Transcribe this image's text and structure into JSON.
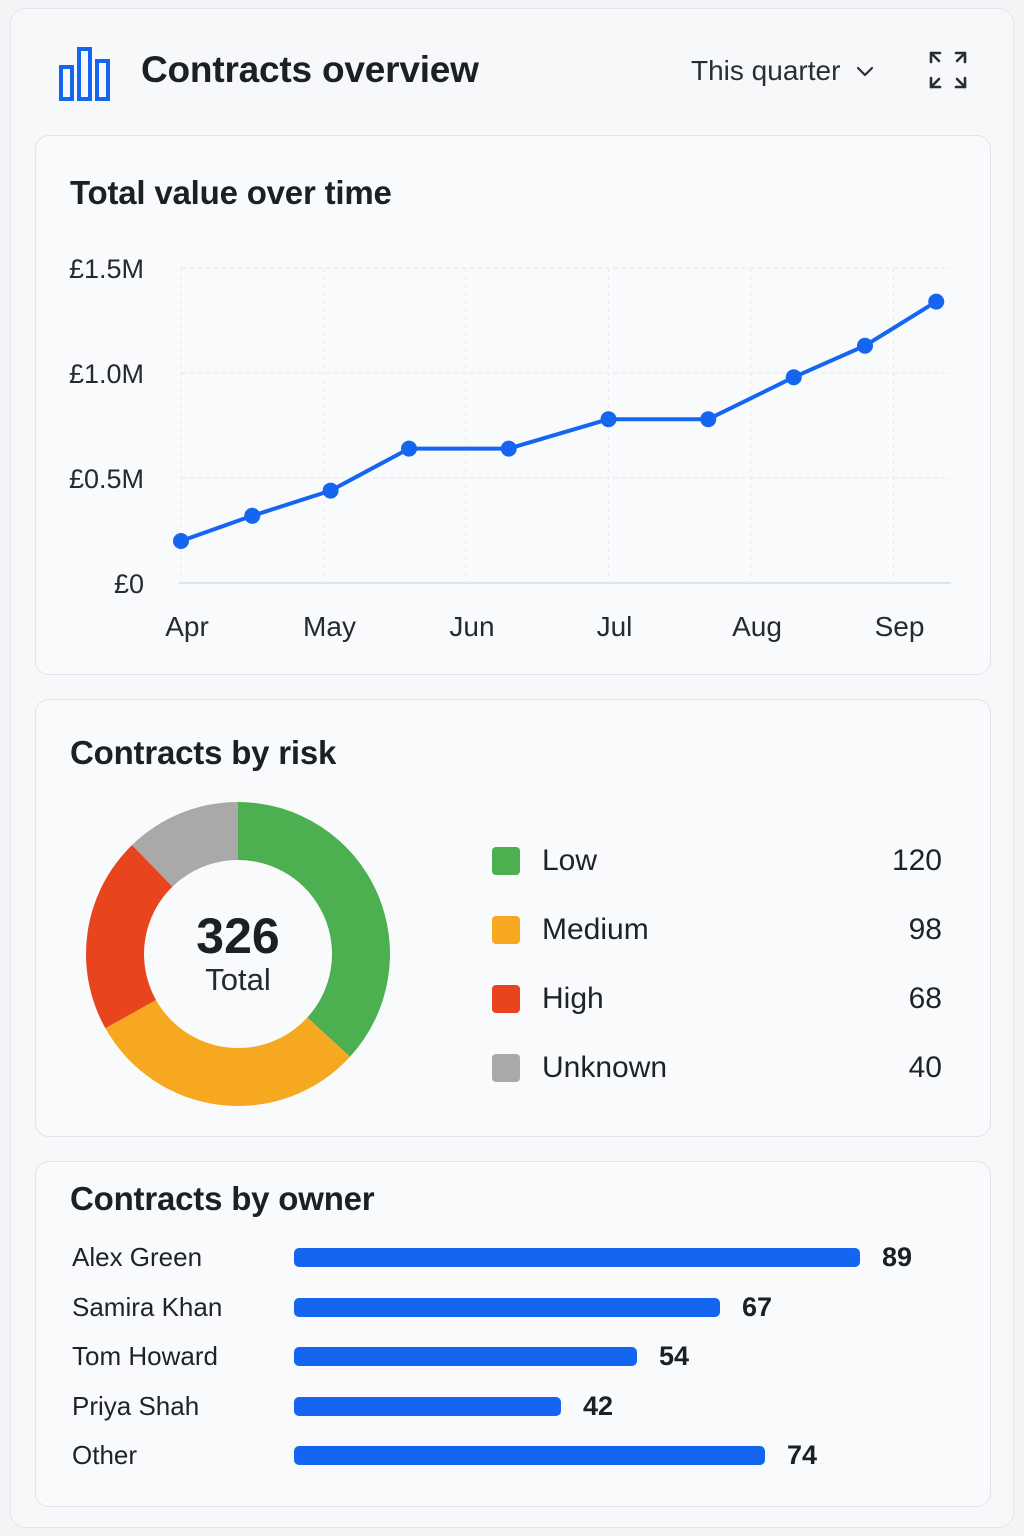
{
  "header": {
    "title": "Contracts overview",
    "period_label": "This quarter",
    "accent_color": "#1465f0",
    "icons": [
      "bar-chart-icon",
      "chevron-down-icon",
      "expand-icon"
    ]
  },
  "line_card": {
    "title": "Total value over time",
    "chart_data": {
      "type": "line",
      "title": "Total value over time",
      "xlabel": "",
      "ylabel": "",
      "x_tick_labels": [
        "Apr",
        "May",
        "Jun",
        "Jul",
        "Aug",
        "Sep"
      ],
      "y_tick_labels": [
        "£0",
        "£0.5M",
        "£1.0M",
        "£1.5M"
      ],
      "ylim": [
        0,
        1.5
      ],
      "y_unit": "£M",
      "grid": true,
      "color": "#1465f0",
      "series": [
        {
          "x": [
            1.0,
            1.5,
            2.05,
            2.6,
            3.3,
            4.0,
            4.7,
            5.3,
            5.8,
            6.3
          ],
          "values": [
            0.2,
            0.32,
            0.44,
            0.64,
            0.64,
            0.78,
            0.78,
            0.98,
            1.13,
            1.34
          ]
        }
      ]
    }
  },
  "risk_card": {
    "title": "Contracts by risk",
    "total": "326",
    "total_label": "Total",
    "chart_data": {
      "type": "pie",
      "title": "Contracts by risk",
      "labels": [
        "Low",
        "Medium",
        "High",
        "Unknown"
      ],
      "values": [
        120,
        98,
        68,
        40
      ],
      "colors": [
        "#4caf50",
        "#f6a821",
        "#e8441e",
        "#a9a9a9"
      ],
      "value_labels": [
        "120",
        "98",
        "68",
        "40"
      ]
    }
  },
  "owner_card": {
    "title": "Contracts by owner",
    "chart_data": {
      "type": "bar",
      "title": "Contracts by owner",
      "categories": [
        "Alex Green",
        "Samira Khan",
        "Tom Howard",
        "Priya Shah",
        "Other"
      ],
      "values": [
        89,
        67,
        54,
        42,
        74
      ],
      "value_labels": [
        "89",
        "67",
        "54",
        "42",
        "74"
      ],
      "color": "#1465f0"
    }
  }
}
